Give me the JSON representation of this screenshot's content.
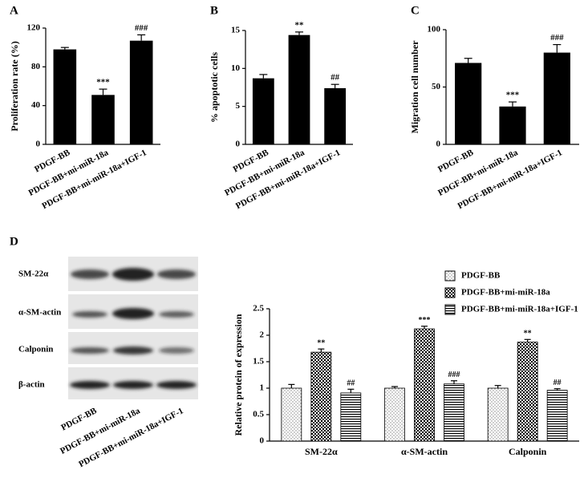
{
  "chart_data": [
    {
      "type": "bar",
      "label": "A",
      "ylabel": "Proliferation rate (%)",
      "categories": [
        "PDGF-BB",
        "PDGF-BB+mi-miR-18a",
        "PDGF-BB+mi-miR-18a+IGF-1"
      ],
      "values": [
        98,
        51,
        107
      ],
      "errors": [
        2,
        6,
        6
      ],
      "annotations": [
        null,
        "***",
        "###"
      ],
      "color": "#000000",
      "ylim": [
        0,
        120
      ],
      "yticks": [
        0,
        40,
        80,
        120
      ]
    },
    {
      "type": "bar",
      "label": "B",
      "ylabel": "% apoptotic cells",
      "categories": [
        "PDGF-BB",
        "PDGF-BB+mi-miR-18a",
        "PDGF-BB+mi-miR-18a+IGF-1"
      ],
      "values": [
        8.7,
        14.4,
        7.4
      ],
      "errors": [
        0.5,
        0.4,
        0.5
      ],
      "annotations": [
        null,
        "**",
        "##"
      ],
      "color": "#000000",
      "ylim": [
        0,
        15
      ],
      "yticks": [
        0,
        5,
        10,
        15
      ]
    },
    {
      "type": "bar",
      "label": "C",
      "ylabel": "Migration cell number",
      "categories": [
        "PDGF-BB",
        "PDGF-BB+mi-miR-18a",
        "PDGF-BB+mi-miR-18a+IGF-1"
      ],
      "values": [
        71,
        33,
        80
      ],
      "errors": [
        4,
        4,
        7
      ],
      "annotations": [
        null,
        "***",
        "###"
      ],
      "color": "#000000",
      "ylim": [
        0,
        100
      ],
      "yticks": [
        0,
        50,
        100
      ]
    },
    {
      "type": "grouped_bar",
      "ylabel": "Relative protein of expression",
      "categories": [
        "SM-22α",
        "α-SM-actin",
        "Calponin"
      ],
      "series": [
        {
          "name": "PDGF-BB",
          "color": "#000000",
          "pattern": "dots",
          "values": [
            1.0,
            1.0,
            1.0
          ],
          "errors": [
            0.07,
            0.03,
            0.05
          ],
          "annotations": [
            null,
            null,
            null
          ]
        },
        {
          "name": "PDGF-BB+mi-miR-18a",
          "color": "#000000",
          "pattern": "checker",
          "values": [
            1.68,
            2.12,
            1.87
          ],
          "errors": [
            0.06,
            0.05,
            0.05
          ],
          "annotations": [
            "**",
            "***",
            "**"
          ]
        },
        {
          "name": "PDGF-BB+mi-miR-18a+IGF-1",
          "color": "#000000",
          "pattern": "lines",
          "values": [
            0.91,
            1.08,
            0.96
          ],
          "errors": [
            0.07,
            0.06,
            0.03
          ],
          "annotations": [
            "##",
            "###",
            "##"
          ]
        }
      ],
      "ylim": [
        0,
        2.5
      ],
      "yticks": [
        0,
        0.5,
        1,
        1.5,
        2,
        2.5
      ],
      "legend": "top-right"
    }
  ],
  "blot": {
    "label": "D",
    "rows": [
      "SM-22α",
      "α-SM-actin",
      "Calponin",
      "β-actin"
    ],
    "lanes": [
      "PDGF-BB",
      "PDGF-BB+mi-miR-18a",
      "PDGF-BB+mi-miR-18a+IGF-1"
    ]
  }
}
